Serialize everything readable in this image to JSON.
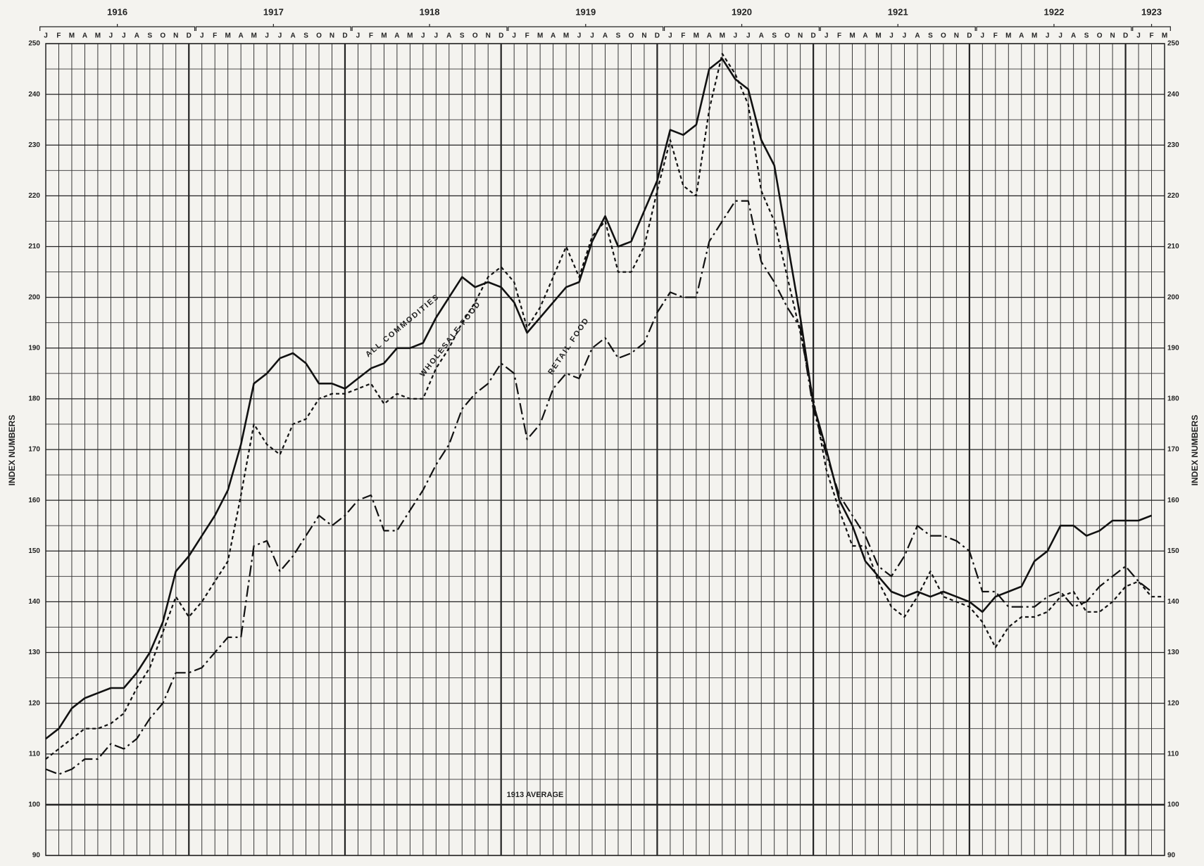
{
  "chart_data": {
    "type": "line",
    "y_axis_label": "INDEX NUMBERS",
    "annotation": "1913 AVERAGE",
    "year_labels": [
      "1916",
      "1917",
      "1918",
      "1919",
      "1920",
      "1921",
      "1922",
      "1923"
    ],
    "categories": [
      "J",
      "F",
      "M",
      "A",
      "M",
      "J",
      "J",
      "A",
      "S",
      "O",
      "N",
      "D",
      "J",
      "F",
      "M",
      "A",
      "M",
      "J",
      "J",
      "A",
      "S",
      "O",
      "N",
      "D",
      "J",
      "F",
      "M",
      "A",
      "M",
      "J",
      "J",
      "A",
      "S",
      "O",
      "N",
      "D",
      "J",
      "F",
      "M",
      "A",
      "M",
      "J",
      "J",
      "A",
      "S",
      "O",
      "N",
      "D",
      "J",
      "F",
      "M",
      "A",
      "M",
      "J",
      "J",
      "A",
      "S",
      "O",
      "N",
      "D",
      "J",
      "F",
      "M",
      "A",
      "M",
      "J",
      "J",
      "A",
      "S",
      "O",
      "N",
      "D",
      "J",
      "F",
      "M",
      "A",
      "M",
      "J",
      "J",
      "A",
      "S",
      "O",
      "N",
      "D",
      "J",
      "F",
      "M"
    ],
    "series": [
      {
        "name": "ALL COMMODITIES",
        "color": "#111111",
        "style": "solid",
        "values": [
          113,
          115,
          119,
          121,
          122,
          123,
          123,
          126,
          130,
          136,
          146,
          149,
          153,
          157,
          162,
          171,
          183,
          185,
          188,
          189,
          187,
          183,
          183,
          182,
          184,
          186,
          187,
          190,
          190,
          191,
          196,
          200,
          204,
          202,
          203,
          202,
          199,
          193,
          196,
          199,
          202,
          203,
          211,
          216,
          210,
          211,
          217,
          223,
          233,
          232,
          234,
          245,
          247,
          243,
          241,
          231,
          226,
          211,
          196,
          179,
          170,
          160,
          155,
          148,
          145,
          142,
          141,
          142,
          141,
          142,
          141,
          140,
          138,
          141,
          142,
          143,
          148,
          150,
          155,
          155,
          153,
          154,
          156,
          156,
          156,
          157,
          null
        ]
      },
      {
        "name": "WHOLESALE FOOD",
        "color": "#111111",
        "style": "dotted",
        "values": [
          109,
          111,
          113,
          115,
          115,
          116,
          118,
          123,
          127,
          134,
          141,
          137,
          140,
          144,
          148,
          161,
          175,
          171,
          169,
          175,
          176,
          180,
          181,
          181,
          182,
          183,
          179,
          181,
          180,
          180,
          186,
          190,
          195,
          199,
          204,
          206,
          203,
          194,
          198,
          204,
          210,
          204,
          212,
          215,
          205,
          205,
          210,
          221,
          231,
          222,
          220,
          237,
          248,
          244,
          238,
          221,
          215,
          204,
          193,
          180,
          166,
          158,
          151,
          151,
          144,
          139,
          137,
          141,
          146,
          141,
          140,
          139,
          136,
          131,
          135,
          137,
          137,
          138,
          141,
          142,
          138,
          138,
          140,
          143,
          144,
          141,
          141
        ]
      },
      {
        "name": "RETAIL FOOD",
        "color": "#111111",
        "style": "dashdot",
        "values": [
          107,
          106,
          107,
          109,
          109,
          112,
          111,
          113,
          117,
          120,
          126,
          126,
          127,
          130,
          133,
          133,
          151,
          152,
          146,
          149,
          153,
          157,
          155,
          157,
          160,
          161,
          154,
          154,
          158,
          162,
          167,
          171,
          178,
          181,
          183,
          187,
          185,
          172,
          175,
          182,
          185,
          184,
          190,
          192,
          188,
          189,
          191,
          197,
          201,
          200,
          200,
          211,
          215,
          219,
          219,
          207,
          203,
          198,
          194,
          178,
          169,
          161,
          157,
          153,
          147,
          145,
          149,
          155,
          153,
          153,
          152,
          150,
          142,
          142,
          139,
          139,
          139,
          141,
          142,
          139,
          140,
          143,
          145,
          147,
          144,
          142,
          null
        ]
      }
    ],
    "ylim": [
      90,
      250
    ],
    "yticks": [
      90,
      100,
      110,
      120,
      130,
      140,
      150,
      160,
      170,
      180,
      190,
      200,
      210,
      220,
      230,
      240,
      250
    ],
    "yminor": [
      95,
      105,
      115,
      125,
      135,
      145,
      155,
      165,
      175,
      185,
      195,
      205,
      215,
      225,
      235,
      245
    ],
    "heavy_ytick": 100,
    "grid": true
  }
}
